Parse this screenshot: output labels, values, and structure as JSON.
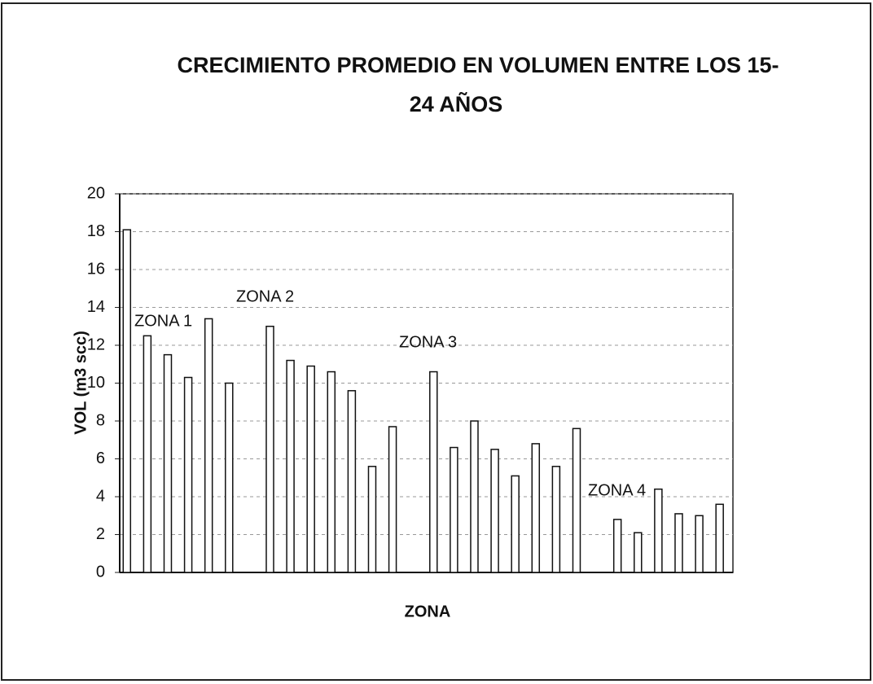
{
  "chart_data": {
    "type": "bar",
    "title": [
      "CRECIMIENTO PROMEDIO EN VOLUMEN ENTRE LOS 15-",
      "24 AÑOS"
    ],
    "x_label": "ZONA",
    "y_label": "VOL (m3 scc)",
    "annotations": [
      "ZONA 1",
      "ZONA 2",
      "ZONA 3",
      "ZONA 4"
    ],
    "categories": [
      null,
      null,
      null,
      null,
      null,
      null,
      null,
      null,
      null,
      null,
      null,
      null,
      null,
      null,
      null,
      null,
      null,
      null,
      null,
      null,
      null,
      null,
      null,
      null,
      null,
      null,
      null,
      null,
      null,
      null
    ],
    "values": [
      18.1,
      12.5,
      11.5,
      10.3,
      13.4,
      10.0,
      null,
      13.0,
      11.2,
      10.9,
      10.6,
      9.6,
      5.6,
      7.7,
      null,
      10.6,
      6.6,
      8.0,
      6.5,
      5.1,
      6.8,
      5.6,
      7.6,
      null,
      2.8,
      2.1,
      4.4,
      3.1,
      3.0,
      3.6
    ],
    "color": "#ffffff",
    "ylim": [
      0,
      20
    ],
    "yticks": [
      0,
      2,
      4,
      6,
      8,
      10,
      12,
      14,
      16,
      18,
      20
    ],
    "grid": true
  }
}
